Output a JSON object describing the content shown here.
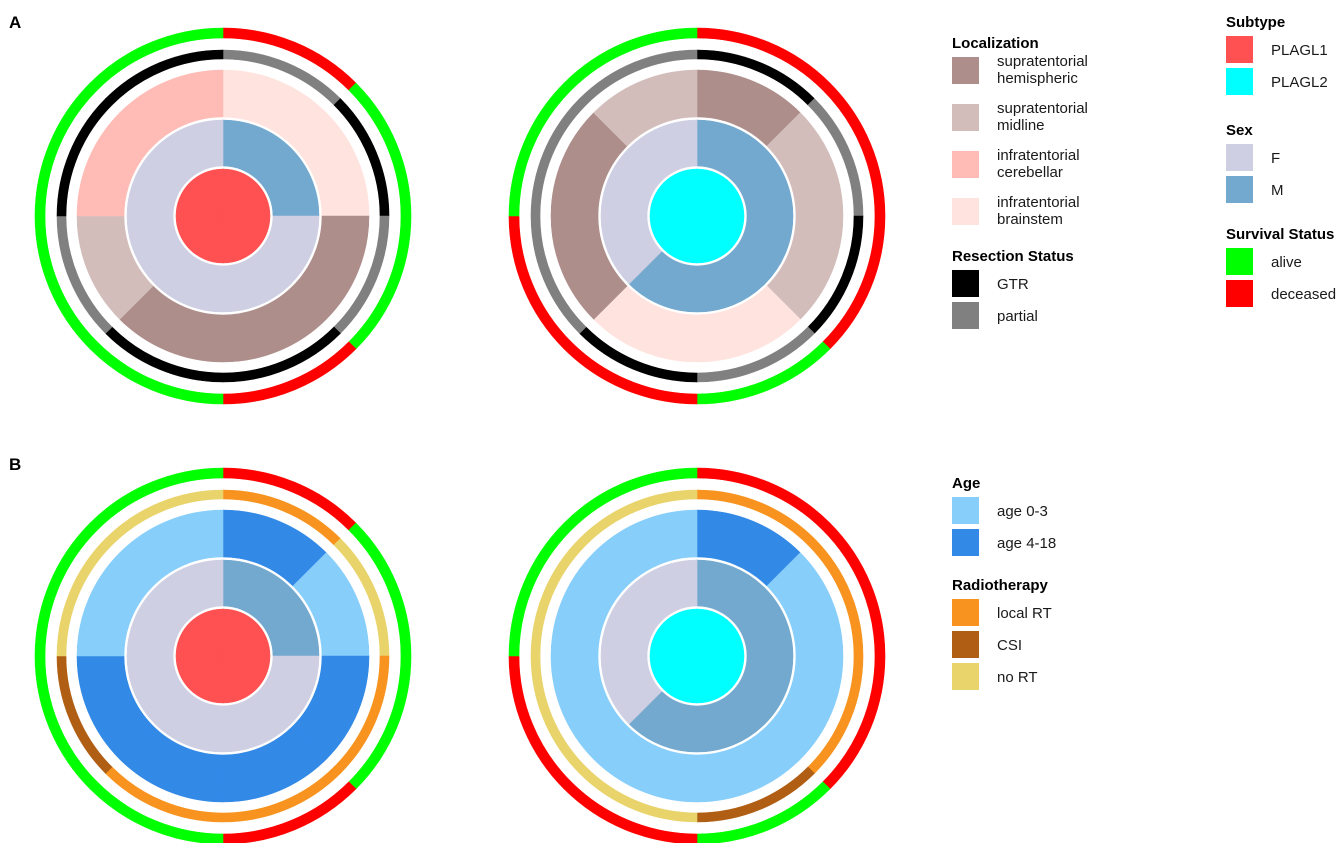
{
  "panels": [
    {
      "label": "A"
    },
    {
      "label": "B"
    }
  ],
  "colors": {
    "PLAGL1": "#FF5151",
    "PLAGL2": "#00FFFF",
    "F": "#CFCFE3",
    "M": "#74A9CF",
    "supratentorial hemispheric": "#AD8E8B",
    "supratentorial midline": "#D2BDBB",
    "infratentorial cerebellar": "#FFBCB6",
    "infratentorial brainstem": "#FFE3DE",
    "GTR": "#000000",
    "partial": "#808080",
    "alive": "#00FF00",
    "deceased": "#FF0000",
    "age 0-3": "#87CEFA",
    "age 4-18": "#3289E6",
    "local RT": "#F7931E",
    "CSI": "#B05E13",
    "no RT": "#E9D36B"
  },
  "legends": [
    {
      "title": "Localization",
      "entries": [
        {
          "label": "supratentorial\nhemispheric",
          "color": "#AD8E8B"
        },
        {
          "label": "supratentorial\nmidline",
          "color": "#D2BDBB"
        },
        {
          "label": "infratentorial\ncerebellar",
          "color": "#FFBCB6"
        },
        {
          "label": "infratentorial\nbrainstem",
          "color": "#FFE3DE"
        }
      ]
    },
    {
      "title": "Resection Status",
      "entries": [
        {
          "label": "GTR",
          "color": "#000000"
        },
        {
          "label": "partial",
          "color": "#808080"
        }
      ]
    },
    {
      "title": "Subtype",
      "entries": [
        {
          "label": "PLAGL1",
          "color": "#FF5151"
        },
        {
          "label": "PLAGL2",
          "color": "#00FFFF"
        }
      ]
    },
    {
      "title": "Sex",
      "entries": [
        {
          "label": "F",
          "color": "#CFCFE3"
        },
        {
          "label": "M",
          "color": "#74A9CF"
        }
      ]
    },
    {
      "title": "Survival Status",
      "entries": [
        {
          "label": "alive",
          "color": "#00FF00"
        },
        {
          "label": "deceased",
          "color": "#FF0000"
        }
      ]
    },
    {
      "title": "Age",
      "entries": [
        {
          "label": "age 0-3",
          "color": "#87CEFA"
        },
        {
          "label": "age 4-18",
          "color": "#3289E6"
        }
      ]
    },
    {
      "title": "Radiotherapy",
      "entries": [
        {
          "label": "local RT",
          "color": "#F7931E"
        },
        {
          "label": "CSI",
          "color": "#B05E13"
        },
        {
          "label": "no RT",
          "color": "#E9D36B"
        }
      ]
    }
  ],
  "chart_data": [
    {
      "type": "pie",
      "panel": "A",
      "subtype": "PLAGL1",
      "n_patients": 8,
      "rings": [
        {
          "variable": "Subtype",
          "values": [
            "PLAGL1",
            "PLAGL1",
            "PLAGL1",
            "PLAGL1",
            "PLAGL1",
            "PLAGL1",
            "PLAGL1",
            "PLAGL1"
          ]
        },
        {
          "variable": "Sex",
          "values": [
            "M",
            "M",
            "F",
            "F",
            "F",
            "F",
            "F",
            "F"
          ]
        },
        {
          "variable": "Localization",
          "values": [
            "infratentorial brainstem",
            "infratentorial brainstem",
            "supratentorial hemispheric",
            "supratentorial hemispheric",
            "supratentorial hemispheric",
            "supratentorial midline",
            "infratentorial cerebellar",
            "infratentorial cerebellar"
          ]
        },
        {
          "variable": "Resection Status",
          "values": [
            "partial",
            "GTR",
            "partial",
            "GTR",
            "GTR",
            "partial",
            "GTR",
            "GTR"
          ]
        },
        {
          "variable": "Survival Status",
          "values": [
            "deceased",
            "alive",
            "alive",
            "deceased",
            "alive",
            "alive",
            "alive",
            "alive"
          ]
        }
      ]
    },
    {
      "type": "pie",
      "panel": "A",
      "subtype": "PLAGL2",
      "n_patients": 8,
      "rings": [
        {
          "variable": "Subtype",
          "values": [
            "PLAGL2",
            "PLAGL2",
            "PLAGL2",
            "PLAGL2",
            "PLAGL2",
            "PLAGL2",
            "PLAGL2",
            "PLAGL2"
          ]
        },
        {
          "variable": "Sex",
          "values": [
            "M",
            "M",
            "M",
            "M",
            "M",
            "F",
            "F",
            "F"
          ]
        },
        {
          "variable": "Localization",
          "values": [
            "supratentorial hemispheric",
            "supratentorial midline",
            "supratentorial midline",
            "infratentorial brainstem",
            "infratentorial brainstem",
            "supratentorial hemispheric",
            "supratentorial hemispheric",
            "supratentorial midline"
          ]
        },
        {
          "variable": "Resection Status",
          "values": [
            "GTR",
            "partial",
            "GTR",
            "partial",
            "GTR",
            "partial",
            "partial",
            "partial"
          ]
        },
        {
          "variable": "Survival Status",
          "values": [
            "deceased",
            "deceased",
            "deceased",
            "alive",
            "deceased",
            "deceased",
            "alive",
            "alive"
          ]
        }
      ]
    },
    {
      "type": "pie",
      "panel": "B",
      "subtype": "PLAGL1",
      "n_patients": 8,
      "rings": [
        {
          "variable": "Subtype",
          "values": [
            "PLAGL1",
            "PLAGL1",
            "PLAGL1",
            "PLAGL1",
            "PLAGL1",
            "PLAGL1",
            "PLAGL1",
            "PLAGL1"
          ]
        },
        {
          "variable": "Sex",
          "values": [
            "M",
            "M",
            "F",
            "F",
            "F",
            "F",
            "F",
            "F"
          ]
        },
        {
          "variable": "Age",
          "values": [
            "age 4-18",
            "age 0-3",
            "age 4-18",
            "age 4-18",
            "age 4-18",
            "age 4-18",
            "age 0-3",
            "age 0-3"
          ]
        },
        {
          "variable": "Radiotherapy",
          "values": [
            "local RT",
            "no RT",
            "local RT",
            "local RT",
            "local RT",
            "CSI",
            "no RT",
            "no RT"
          ]
        },
        {
          "variable": "Survival Status",
          "values": [
            "deceased",
            "alive",
            "alive",
            "deceased",
            "alive",
            "alive",
            "alive",
            "alive"
          ]
        }
      ]
    },
    {
      "type": "pie",
      "panel": "B",
      "subtype": "PLAGL2",
      "n_patients": 8,
      "rings": [
        {
          "variable": "Subtype",
          "values": [
            "PLAGL2",
            "PLAGL2",
            "PLAGL2",
            "PLAGL2",
            "PLAGL2",
            "PLAGL2",
            "PLAGL2",
            "PLAGL2"
          ]
        },
        {
          "variable": "Sex",
          "values": [
            "M",
            "M",
            "M",
            "M",
            "M",
            "F",
            "F",
            "F"
          ]
        },
        {
          "variable": "Age",
          "values": [
            "age 4-18",
            "age 0-3",
            "age 0-3",
            "age 0-3",
            "age 0-3",
            "age 0-3",
            "age 0-3",
            "age 0-3"
          ]
        },
        {
          "variable": "Radiotherapy",
          "values": [
            "local RT",
            "local RT",
            "local RT",
            "CSI",
            "no RT",
            "no RT",
            "no RT",
            "no RT"
          ]
        },
        {
          "variable": "Survival Status",
          "values": [
            "deceased",
            "deceased",
            "deceased",
            "alive",
            "deceased",
            "deceased",
            "alive",
            "alive"
          ]
        }
      ]
    }
  ]
}
